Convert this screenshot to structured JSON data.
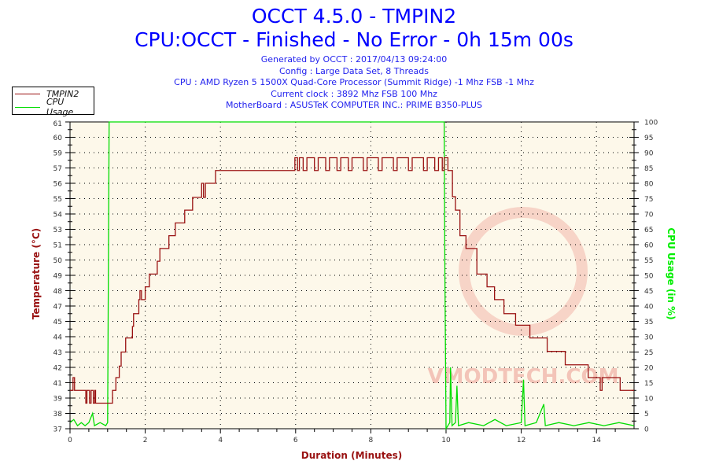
{
  "header": {
    "title": "OCCT 4.5.0 - TMPIN2",
    "subtitle": "CPU:OCCT - Finished - No Error - 0h 15m 00s",
    "info": [
      "Generated by OCCT : 2017/04/13 09:24:00",
      "Config : Large Data Set, 8 Threads",
      "CPU : AMD Ryzen 5 1500X Quad-Core Processor (Summit Ridge) -1 Mhz FSB -1 Mhz",
      "Current clock : 3892 Mhz FSB 100 Mhz",
      "MotherBoard : ASUSTeK COMPUTER INC.: PRIME B350-PLUS"
    ]
  },
  "watermark": "VMODTECH.COM",
  "chart_data": {
    "type": "line",
    "xlabel": "Duration (Minutes)",
    "ylabel": "Temperature (°C)",
    "y2label": "CPU Usage (in %)",
    "xlim": [
      0,
      15
    ],
    "ylim": [
      37,
      61
    ],
    "y2lim": [
      0,
      100
    ],
    "grid": true,
    "legend_position": "top-left",
    "x_ticks": [
      "0",
      "2",
      "4",
      "6",
      "8",
      "10",
      "12",
      "14"
    ],
    "y_ticks": [
      "37",
      "38",
      "39",
      "41",
      "42",
      "43",
      "44",
      "45",
      "47",
      "48",
      "49",
      "50",
      "51",
      "53",
      "54",
      "55",
      "56",
      "57",
      "59",
      "60",
      "61"
    ],
    "y2_ticks": [
      "0",
      "5",
      "10",
      "15",
      "20",
      "25",
      "30",
      "35",
      "40",
      "45",
      "50",
      "55",
      "60",
      "65",
      "70",
      "75",
      "80",
      "85",
      "90",
      "95",
      "100"
    ],
    "colors": {
      "plot_bg": "#fdf8ea",
      "temp": "#991111",
      "cpu": "#00dd00",
      "ylabel": "#991111",
      "y2label": "#00ee00"
    },
    "series": [
      {
        "name": "TMPIN2",
        "step": true,
        "points": [
          [
            0,
            40.0
          ],
          [
            0.08,
            41.0
          ],
          [
            0.12,
            40.0
          ],
          [
            0.4,
            40.0
          ],
          [
            0.42,
            39.0
          ],
          [
            0.45,
            40.0
          ],
          [
            0.52,
            39.0
          ],
          [
            0.56,
            40.0
          ],
          [
            0.6,
            40.0
          ],
          [
            0.62,
            39.0
          ],
          [
            0.66,
            40.0
          ],
          [
            0.68,
            39.0
          ],
          [
            1.13,
            40.0
          ],
          [
            1.22,
            41.0
          ],
          [
            1.31,
            41.9
          ],
          [
            1.36,
            43.0
          ],
          [
            1.48,
            44.1
          ],
          [
            1.66,
            45.0
          ],
          [
            1.69,
            46.0
          ],
          [
            1.83,
            47.1
          ],
          [
            1.86,
            47.8
          ],
          [
            1.9,
            47.1
          ],
          [
            2.0,
            48.1
          ],
          [
            2.11,
            49.1
          ],
          [
            2.32,
            50.1
          ],
          [
            2.39,
            51.1
          ],
          [
            2.63,
            52.1
          ],
          [
            2.8,
            53.1
          ],
          [
            3.05,
            54.1
          ],
          [
            3.26,
            55.1
          ],
          [
            3.5,
            56.2
          ],
          [
            3.55,
            55.1
          ],
          [
            3.6,
            56.2
          ],
          [
            3.87,
            57.2
          ],
          [
            5.95,
            57.2
          ],
          [
            5.98,
            58.2
          ],
          [
            6.05,
            57.2
          ],
          [
            6.1,
            58.2
          ],
          [
            6.2,
            57.2
          ],
          [
            6.3,
            58.2
          ],
          [
            6.5,
            57.2
          ],
          [
            6.6,
            58.2
          ],
          [
            6.8,
            57.2
          ],
          [
            6.9,
            58.2
          ],
          [
            7.1,
            57.2
          ],
          [
            7.2,
            58.2
          ],
          [
            7.4,
            57.2
          ],
          [
            7.5,
            58.2
          ],
          [
            7.8,
            57.2
          ],
          [
            7.9,
            58.2
          ],
          [
            8.2,
            57.2
          ],
          [
            8.3,
            58.2
          ],
          [
            8.6,
            57.2
          ],
          [
            8.7,
            58.2
          ],
          [
            9.0,
            57.2
          ],
          [
            9.1,
            58.2
          ],
          [
            9.4,
            57.2
          ],
          [
            9.5,
            58.2
          ],
          [
            9.7,
            57.2
          ],
          [
            9.8,
            58.2
          ],
          [
            9.9,
            57.2
          ],
          [
            9.95,
            58.2
          ],
          [
            10.05,
            57.2
          ],
          [
            10.17,
            55.15
          ],
          [
            10.25,
            54.1
          ],
          [
            10.37,
            52.1
          ],
          [
            10.53,
            51.1
          ],
          [
            10.82,
            49.1
          ],
          [
            11.09,
            48.1
          ],
          [
            11.29,
            47.1
          ],
          [
            11.54,
            46.0
          ],
          [
            11.85,
            45.1
          ],
          [
            12.23,
            44.1
          ],
          [
            12.69,
            43.05
          ],
          [
            13.17,
            42.0
          ],
          [
            13.78,
            41.0
          ],
          [
            14.1,
            40.0
          ],
          [
            14.15,
            41.0
          ],
          [
            14.63,
            40.0
          ],
          [
            15,
            40.0
          ]
        ]
      },
      {
        "name": "CPU Usage",
        "step": false,
        "points": [
          [
            0,
            2
          ],
          [
            0.1,
            3
          ],
          [
            0.2,
            1
          ],
          [
            0.3,
            2
          ],
          [
            0.4,
            1
          ],
          [
            0.5,
            2
          ],
          [
            0.6,
            5
          ],
          [
            0.65,
            1
          ],
          [
            0.8,
            2
          ],
          [
            0.95,
            1
          ],
          [
            1.0,
            2
          ],
          [
            1.02,
            50
          ],
          [
            1.04,
            100
          ],
          [
            9.95,
            100
          ],
          [
            9.97,
            50
          ],
          [
            10.0,
            0
          ],
          [
            10.1,
            2
          ],
          [
            10.12,
            20
          ],
          [
            10.16,
            1
          ],
          [
            10.25,
            2
          ],
          [
            10.29,
            14
          ],
          [
            10.33,
            1
          ],
          [
            10.6,
            2
          ],
          [
            11.0,
            1
          ],
          [
            11.3,
            3
          ],
          [
            11.6,
            1
          ],
          [
            12.0,
            2
          ],
          [
            12.06,
            16
          ],
          [
            12.1,
            1
          ],
          [
            12.4,
            2
          ],
          [
            12.6,
            8
          ],
          [
            12.64,
            1
          ],
          [
            13.0,
            2
          ],
          [
            13.4,
            1
          ],
          [
            13.8,
            2
          ],
          [
            14.2,
            1
          ],
          [
            14.6,
            2
          ],
          [
            15,
            1
          ]
        ]
      }
    ]
  }
}
